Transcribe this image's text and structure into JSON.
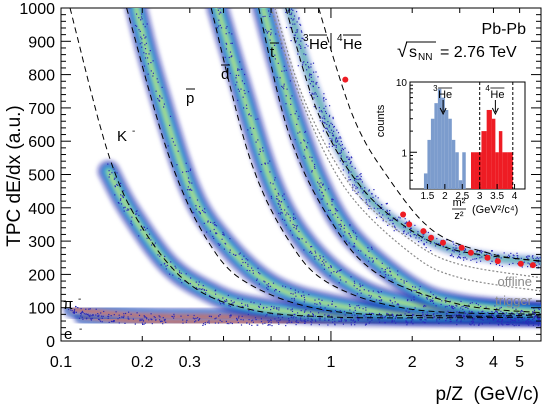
{
  "chart_data": [
    {
      "type": "scatter",
      "xlabel": "p/Z  (GeV/c)",
      "ylabel": "TPC dE/dx (a.u.)",
      "xscale": "log",
      "xlim": [
        0.1,
        6.0
      ],
      "ylim": [
        0,
        1000
      ],
      "x_ticks": [
        0.1,
        0.2,
        0.3,
        1,
        2,
        3,
        4,
        5
      ],
      "x_tick_labels": [
        "0.1",
        "0.2",
        "0.3",
        "1",
        "2",
        "3",
        "4",
        "5"
      ],
      "y_ticks": [
        0,
        100,
        200,
        300,
        400,
        500,
        600,
        700,
        800,
        900,
        1000
      ],
      "y_tick_labels": [
        "0",
        "100",
        "200",
        "300",
        "400",
        "500",
        "600",
        "700",
        "800",
        "900",
        "1000"
      ],
      "grid": false,
      "annotations": {
        "system": "Pb-Pb",
        "energy_prefix": "√",
        "energy_s": "s",
        "energy_sub": "NN",
        "energy_value": "= 2.76 TeV",
        "offline": "offline",
        "trigger": "trigger"
      },
      "band_labels": [
        {
          "base": "e",
          "sup": "-"
        },
        {
          "base": "π",
          "sup": "-"
        },
        {
          "base": "K",
          "sup": "-"
        },
        {
          "base": "p",
          "bar": true
        },
        {
          "base": "d",
          "bar": true
        },
        {
          "base": "t",
          "bar": true
        },
        {
          "sup": "3",
          "base": "He",
          "bar": true
        },
        {
          "sup": "4",
          "base": "He",
          "bar": true
        }
      ],
      "series": [
        {
          "points": [
            [
              0.12,
              75
            ],
            [
              0.2,
              60
            ],
            [
              0.5,
              57
            ],
            [
              1,
              57
            ],
            [
              3,
              57
            ],
            [
              6,
              57
            ]
          ]
        },
        {
          "points": [
            [
              0.11,
              95
            ],
            [
              0.2,
              76
            ],
            [
              0.5,
              72
            ],
            [
              1,
              73
            ],
            [
              3,
              75
            ],
            [
              6,
              76
            ]
          ]
        },
        {
          "points": [
            [
              0.15,
              510
            ],
            [
              0.18,
              390
            ],
            [
              0.25,
              230
            ],
            [
              0.35,
              150
            ],
            [
              0.5,
              105
            ],
            [
              1,
              80
            ],
            [
              3,
              78
            ],
            [
              6,
              78
            ]
          ]
        },
        {
          "points": [
            [
              0.19,
              1000
            ],
            [
              0.22,
              800
            ],
            [
              0.3,
              460
            ],
            [
              0.4,
              300
            ],
            [
              0.6,
              170
            ],
            [
              1,
              110
            ],
            [
              2,
              82
            ],
            [
              6,
              78
            ]
          ]
        },
        {
          "points": [
            [
              0.38,
              1000
            ],
            [
              0.45,
              800
            ],
            [
              0.6,
              480
            ],
            [
              0.8,
              300
            ],
            [
              1.2,
              170
            ],
            [
              2,
              110
            ],
            [
              6,
              80
            ]
          ]
        },
        {
          "points": [
            [
              0.56,
              1000
            ],
            [
              0.7,
              720
            ],
            [
              0.9,
              480
            ],
            [
              1.2,
              310
            ],
            [
              2,
              160
            ],
            [
              3,
              110
            ],
            [
              6,
              85
            ]
          ]
        },
        {
          "points": [
            [
              0.7,
              1000
            ],
            [
              0.85,
              780
            ],
            [
              1.1,
              560
            ],
            [
              1.5,
              400
            ],
            [
              2.5,
              290
            ],
            [
              4,
              250
            ],
            [
              6,
              240
            ]
          ]
        }
      ],
      "model_curves": [
        {
          "points": [
            [
              0.108,
              1000
            ],
            [
              0.15,
              560
            ],
            [
              0.2,
              340
            ],
            [
              0.3,
              170
            ],
            [
              0.5,
              95
            ],
            [
              1,
              72
            ],
            [
              3,
              70
            ],
            [
              6,
              72
            ]
          ]
        },
        {
          "points": [
            [
              0.175,
              1000
            ],
            [
              0.25,
              560
            ],
            [
              0.35,
              300
            ],
            [
              0.5,
              170
            ],
            [
              1,
              90
            ],
            [
              3,
              75
            ],
            [
              6,
              78
            ]
          ]
        },
        {
          "points": [
            [
              0.36,
              1000
            ],
            [
              0.5,
              550
            ],
            [
              0.7,
              300
            ],
            [
              1,
              170
            ],
            [
              2,
              95
            ],
            [
              6,
              80
            ]
          ]
        },
        {
          "points": [
            [
              0.54,
              1000
            ],
            [
              0.7,
              620
            ],
            [
              1,
              360
            ],
            [
              1.5,
              200
            ],
            [
              3,
              110
            ],
            [
              6,
              85
            ]
          ]
        },
        {
          "points": [
            [
              0.68,
              1000
            ],
            [
              0.9,
              680
            ],
            [
              1.3,
              460
            ],
            [
              2,
              330
            ],
            [
              3,
              270
            ],
            [
              6,
              240
            ]
          ]
        },
        {
          "points": [
            [
              0.9,
              1000
            ],
            [
              1.2,
              680
            ],
            [
              1.6,
              500
            ],
            [
              2.4,
              330
            ],
            [
              4,
              260
            ],
            [
              6,
              240
            ]
          ]
        }
      ],
      "threshold_curves": [
        {
          "name": "offline",
          "points": [
            [
              0.62,
              1000
            ],
            [
              0.8,
              720
            ],
            [
              1.2,
              460
            ],
            [
              2,
              300
            ],
            [
              3,
              230
            ],
            [
              6,
              190
            ]
          ]
        },
        {
          "name": "trigger",
          "points": [
            [
              0.6,
              1000
            ],
            [
              0.78,
              720
            ],
            [
              1.15,
              450
            ],
            [
              2,
              260
            ],
            [
              3,
              190
            ],
            [
              6,
              150
            ]
          ]
        }
      ],
      "red_points": [
        [
          1.13,
          785
        ],
        [
          1.85,
          380
        ],
        [
          1.95,
          350
        ],
        [
          2.2,
          330
        ],
        [
          2.35,
          310
        ],
        [
          2.6,
          295
        ],
        [
          3.05,
          280
        ],
        [
          3.3,
          265
        ],
        [
          3.8,
          250
        ],
        [
          4.15,
          240
        ],
        [
          5.05,
          232
        ],
        [
          5.6,
          228
        ]
      ]
    },
    {
      "type": "bar",
      "xlabel_lines": [
        "m²",
        "z²",
        "(GeV²/c⁴)"
      ],
      "ylabel": "counts",
      "yscale": "log",
      "xlim": [
        1.0,
        4.3
      ],
      "ylim": [
        0.3,
        10
      ],
      "x_ticks": [
        1.5,
        2,
        2.5,
        3,
        3.5,
        4
      ],
      "x_tick_labels": [
        "1.5",
        "2",
        "2.5",
        "3",
        "3.5",
        "4"
      ],
      "y_ticks": [
        1,
        10
      ],
      "y_tick_labels": [
        "1",
        "10"
      ],
      "peak_labels": [
        {
          "sup": "3",
          "base": "He",
          "bar": true,
          "x": 1.95
        },
        {
          "sup": "4",
          "base": "He",
          "bar": true,
          "x": 3.45
        }
      ],
      "dashed_lines_x": [
        3.0,
        3.95
      ],
      "bins": {
        "edges": [
          1.4,
          1.5,
          1.6,
          1.7,
          1.8,
          1.9,
          2.0,
          2.1,
          2.2,
          2.3,
          2.4,
          2.5,
          2.6,
          2.7
        ],
        "values": [
          0.5,
          1.5,
          3,
          5,
          8,
          6,
          4,
          3,
          1.5,
          1,
          0.4,
          1,
          0
        ],
        "color": "#7c9ccd"
      },
      "bins2": {
        "edges": [
          2.75,
          2.85,
          3.05,
          3.2,
          3.35,
          3.45,
          3.55,
          3.65,
          3.8,
          3.95
        ],
        "values": [
          1,
          1,
          2,
          4,
          3,
          1,
          2,
          1,
          1
        ],
        "color": "#ee1c24"
      }
    }
  ]
}
